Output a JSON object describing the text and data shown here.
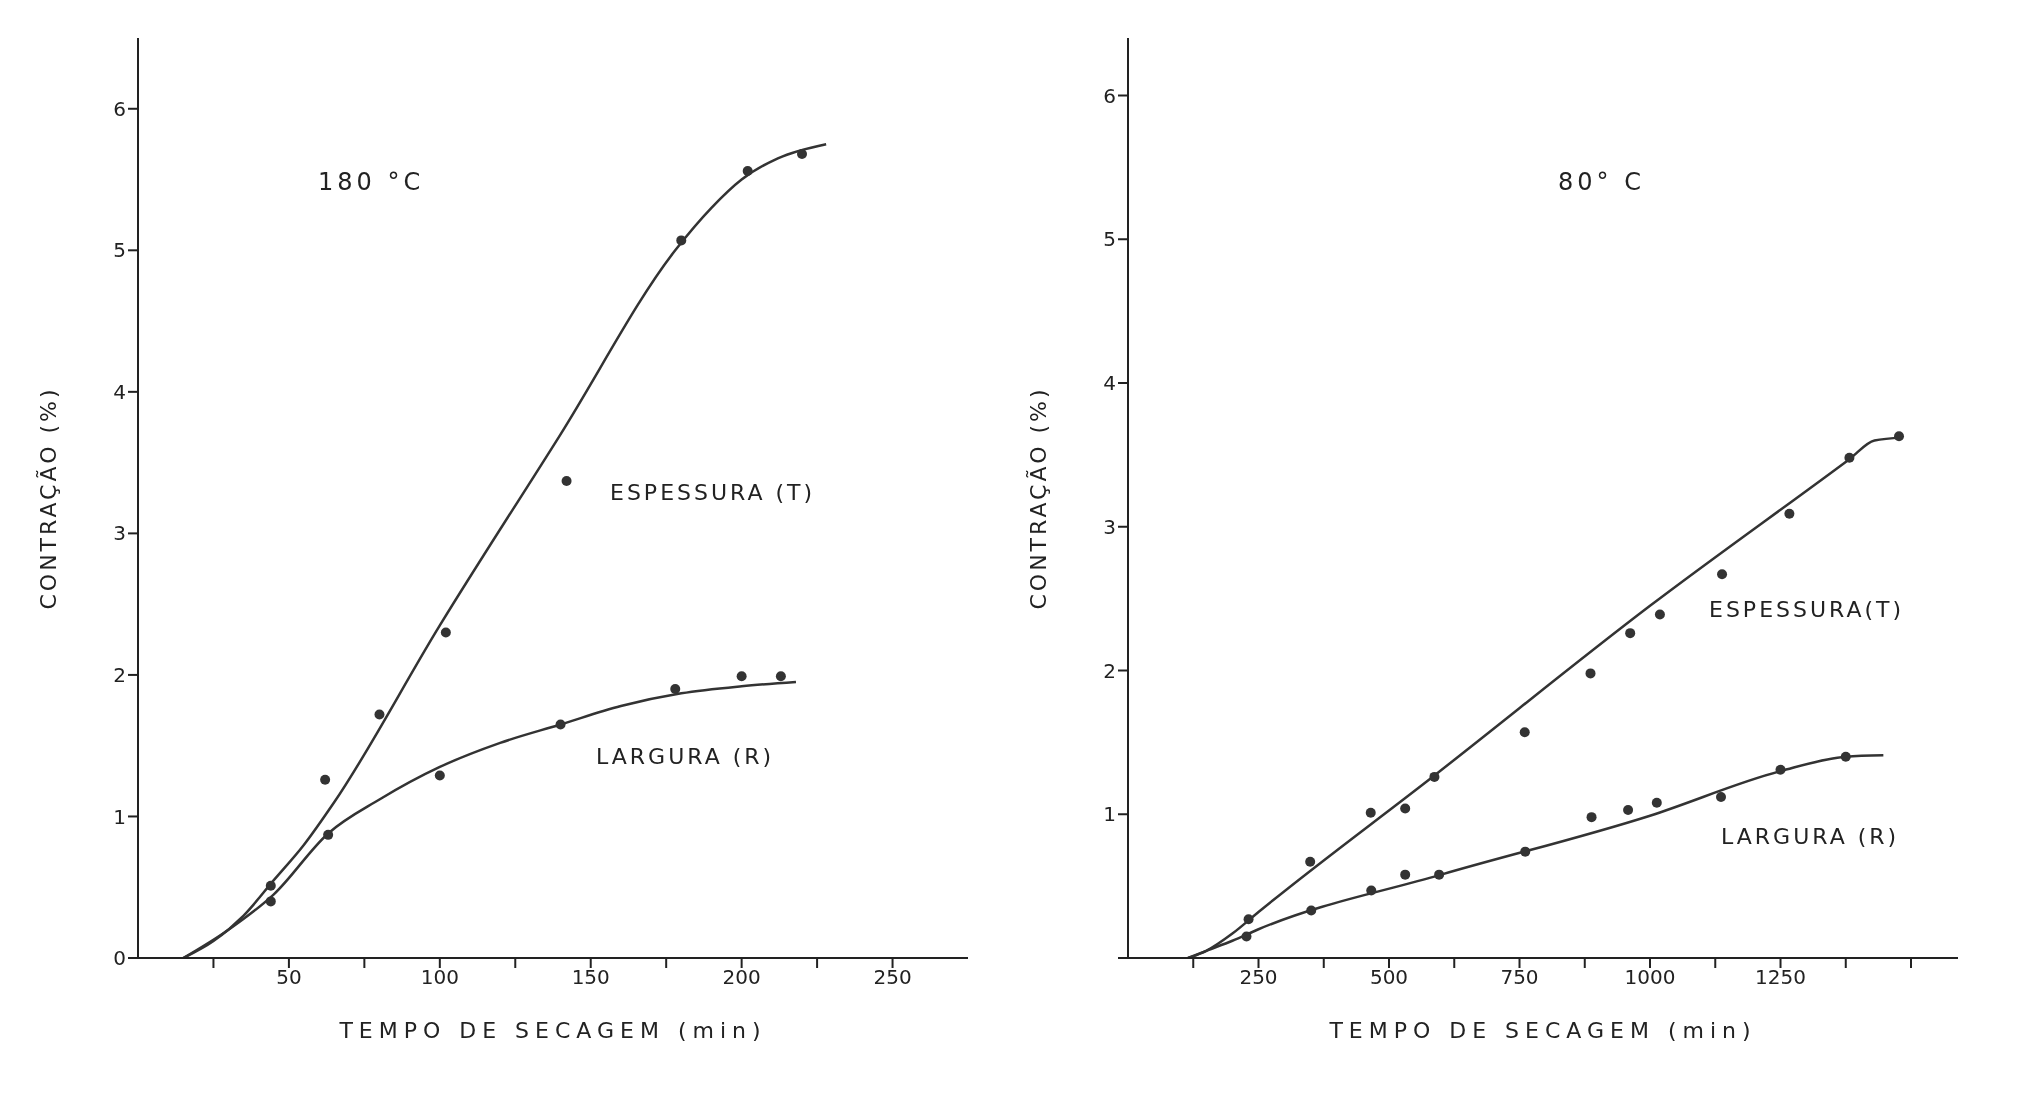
{
  "chart_data": [
    {
      "type": "scatter",
      "title": "180 °C",
      "xlabel": "TEMPO DE SECAGEM (min)",
      "ylabel": "CONTRAÇÃO (%)",
      "xlim": [
        0,
        275
      ],
      "xticks": [
        {
          "value": 25,
          "label": null
        },
        50,
        {
          "value": 75,
          "label": null
        },
        100,
        {
          "value": 125,
          "label": null
        },
        150,
        {
          "value": 175,
          "label": null
        },
        200,
        {
          "value": 225,
          "label": null
        },
        250
      ],
      "ylim": [
        0,
        6.5
      ],
      "yticks": [
        0,
        1,
        2,
        3,
        4,
        5,
        6
      ],
      "grid": false,
      "marker": "circle",
      "series": [
        {
          "type": "scatter",
          "color": "#333333",
          "x": [
            44,
            62,
            80,
            102,
            142,
            180,
            202,
            220
          ],
          "values": [
            0.51,
            1.26,
            1.72,
            2.3,
            3.37,
            5.07,
            5.56,
            5.68
          ]
        },
        {
          "type": "scatter",
          "color": "#333333",
          "x": [
            44,
            63,
            100,
            140,
            178,
            200,
            213
          ],
          "values": [
            0.4,
            0.87,
            1.29,
            1.65,
            1.9,
            1.99,
            1.99
          ]
        },
        {
          "type": "line",
          "color": "#333333",
          "marker": "none",
          "line_style": "solid",
          "x": [
            15,
            25,
            35,
            45,
            55,
            65,
            100,
            140,
            178,
            190,
            200,
            212,
            228
          ],
          "values": [
            0,
            0.12,
            0.3,
            0.55,
            0.8,
            1.1,
            2.35,
            3.7,
            5.0,
            5.3,
            5.5,
            5.65,
            5.75
          ]
        },
        {
          "type": "line",
          "color": "#333333",
          "marker": "none",
          "line_style": "solid",
          "x": [
            15,
            30,
            45,
            63,
            80,
            100,
            120,
            140,
            160,
            180,
            200,
            218
          ],
          "values": [
            0,
            0.2,
            0.45,
            0.88,
            1.12,
            1.35,
            1.52,
            1.65,
            1.78,
            1.87,
            1.92,
            1.95
          ]
        }
      ],
      "annotations": [
        "ESPESSURA (T)",
        "LARGURA (R)"
      ]
    },
    {
      "type": "scatter",
      "title": "80° C",
      "xlabel": "TEMPO DE SECAGEM (min)",
      "ylabel": "CONTRAÇÃO (%)",
      "xlim": [
        0,
        1590
      ],
      "xticks": [
        {
          "value": 125,
          "label": null
        },
        250,
        {
          "value": 375,
          "label": null
        },
        500,
        {
          "value": 625,
          "label": null
        },
        750,
        {
          "value": 875,
          "label": null
        },
        1000,
        {
          "value": 1125,
          "label": null
        },
        1250,
        {
          "value": 1375,
          "label": null
        },
        {
          "value": 1500,
          "label": null
        }
      ],
      "ylim": [
        0,
        6.4
      ],
      "yticks": [
        {
          "value": 0,
          "label": null
        },
        1,
        2,
        3,
        4,
        5,
        6
      ],
      "grid": false,
      "marker": "circle",
      "series": [
        {
          "type": "scatter",
          "color": "#333333",
          "x": [
            231,
            349,
            465,
            531,
            587,
            760,
            886,
            962,
            1019,
            1138,
            1267,
            1382,
            1477
          ],
          "values": [
            0.27,
            0.67,
            1.01,
            1.04,
            1.26,
            1.57,
            1.98,
            2.26,
            2.39,
            2.67,
            3.09,
            3.48,
            3.63
          ]
        },
        {
          "type": "scatter",
          "color": "#333333",
          "x": [
            227,
            351,
            466,
            531,
            596,
            761,
            888,
            958,
            1013,
            1136,
            1250,
            1375
          ],
          "values": [
            0.15,
            0.33,
            0.47,
            0.58,
            0.58,
            0.74,
            0.98,
            1.03,
            1.08,
            1.12,
            1.31,
            1.4
          ]
        },
        {
          "type": "line",
          "color": "#333333",
          "marker": "none",
          "line_style": "solid",
          "x": [
            115,
            150,
            200,
            250,
            587,
            1000,
            1382,
            1430,
            1483
          ],
          "values": [
            0,
            0.05,
            0.17,
            0.32,
            1.27,
            2.45,
            3.47,
            3.6,
            3.62
          ]
        },
        {
          "type": "line",
          "color": "#333333",
          "marker": "none",
          "line_style": "solid",
          "x": [
            115,
            150,
            200,
            250,
            600,
            1000,
            1250,
            1375,
            1447
          ],
          "values": [
            0,
            0.05,
            0.12,
            0.2,
            0.58,
            0.99,
            1.3,
            1.4,
            1.41
          ]
        }
      ],
      "annotations": [
        "ESPESSURA(T)",
        "LARGURA (R)"
      ]
    }
  ]
}
